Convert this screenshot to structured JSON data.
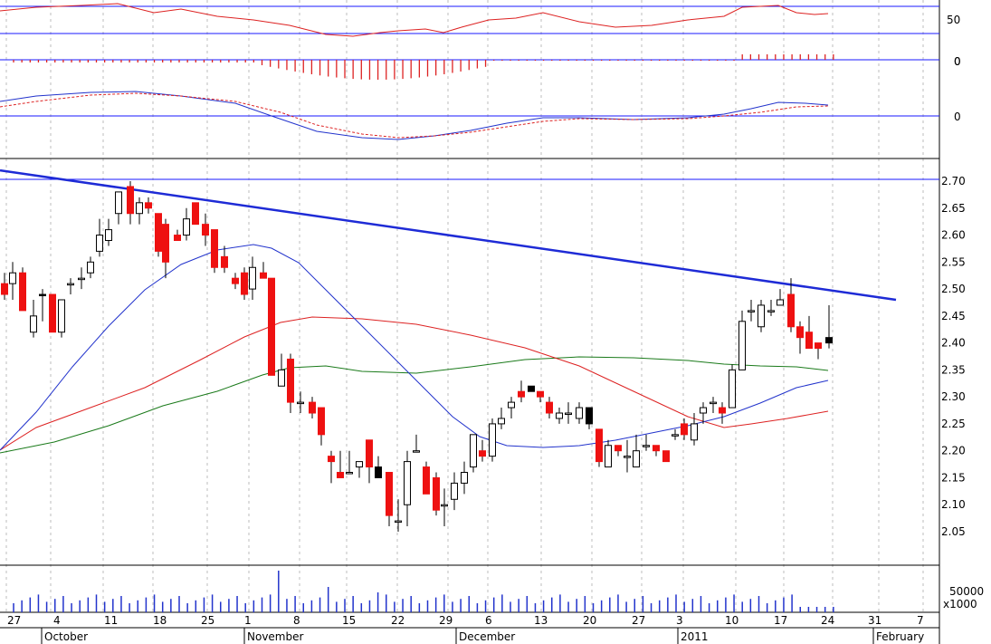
{
  "chart_data": [
    {
      "type": "line",
      "name": "oscillator",
      "tick_labels": [
        "50",
        "0"
      ],
      "reference_levels": [
        70,
        30
      ]
    },
    {
      "type": "bar",
      "name": "histogram",
      "tick_labels": [
        "0"
      ]
    },
    {
      "type": "line",
      "name": "macd",
      "tick_labels": [
        "0"
      ]
    },
    {
      "type": "candlestick",
      "name": "price",
      "ylim": [
        2.0,
        2.75
      ],
      "y_ticks": [
        "2.70",
        "2.65",
        "2.60",
        "2.55",
        "2.50",
        "2.45",
        "2.40",
        "2.35",
        "2.30",
        "2.25",
        "2.20",
        "2.15",
        "2.10",
        "2.05"
      ],
      "reference_levels": [
        2.7
      ],
      "trendline": {
        "start": [
          0,
          2.72
        ],
        "end": [
          99,
          2.48
        ],
        "color": "#1e2bd6"
      },
      "ma_colors": {
        "short": "#2233cc",
        "mid": "#dd2222",
        "long": "#1a7a1a"
      },
      "up_color": "#ffffff",
      "down_color": "#ee1111"
    },
    {
      "type": "bar",
      "name": "volume",
      "tick_labels": [
        "50000"
      ],
      "unit_label": "x1000"
    }
  ],
  "x_axis": {
    "day_labels": [
      "27",
      "4",
      "11",
      "18",
      "25",
      "1",
      "8",
      "15",
      "22",
      "29",
      "6",
      "13",
      "20",
      "27",
      "3",
      "10",
      "17",
      "24",
      "31",
      "7"
    ],
    "month_labels": [
      "October",
      "November",
      "December",
      "2011",
      "February"
    ]
  }
}
